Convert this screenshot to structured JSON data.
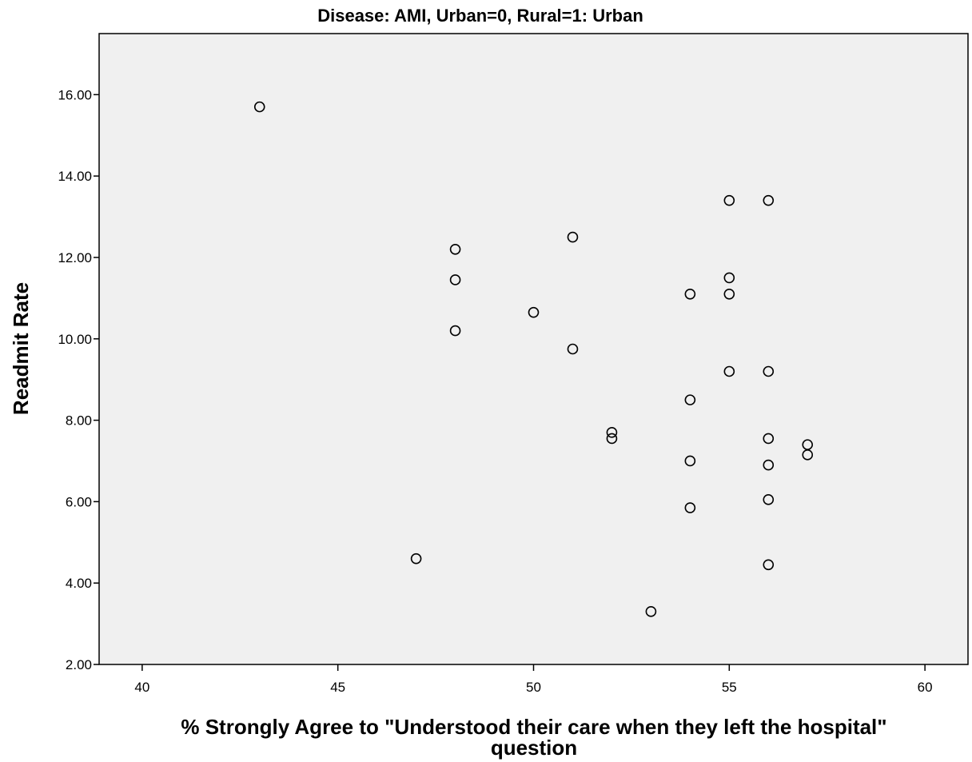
{
  "chart_data": {
    "type": "scatter",
    "title": "Disease: AMI, Urban=0, Rural=1: Urban",
    "xlabel_lines": [
      "% Strongly Agree to \"Understood their care when they left the hospital\"",
      "question"
    ],
    "ylabel": "Readmit Rate",
    "xlim": [
      38.9,
      61.1
    ],
    "ylim": [
      2.0,
      17.5
    ],
    "x_ticks": [
      40,
      45,
      50,
      55,
      60
    ],
    "x_tick_labels": [
      "40",
      "45",
      "50",
      "55",
      "60"
    ],
    "y_ticks": [
      2,
      4,
      6,
      8,
      10,
      12,
      14,
      16
    ],
    "y_tick_labels": [
      "2.00",
      "4.00",
      "6.00",
      "8.00",
      "10.00",
      "12.00",
      "14.00",
      "16.00"
    ],
    "grid": false,
    "plot_background": "#f0f0f0",
    "marker_color": "#000000",
    "points": [
      {
        "x": 43,
        "y": 15.7
      },
      {
        "x": 47,
        "y": 4.6
      },
      {
        "x": 48,
        "y": 12.2
      },
      {
        "x": 48,
        "y": 11.45
      },
      {
        "x": 48,
        "y": 10.2
      },
      {
        "x": 50,
        "y": 10.65
      },
      {
        "x": 51,
        "y": 12.5
      },
      {
        "x": 51,
        "y": 9.75
      },
      {
        "x": 52,
        "y": 7.7
      },
      {
        "x": 52,
        "y": 7.55
      },
      {
        "x": 53,
        "y": 3.3
      },
      {
        "x": 54,
        "y": 11.1
      },
      {
        "x": 54,
        "y": 8.5
      },
      {
        "x": 54,
        "y": 7.0
      },
      {
        "x": 54,
        "y": 5.85
      },
      {
        "x": 55,
        "y": 13.4
      },
      {
        "x": 55,
        "y": 11.5
      },
      {
        "x": 55,
        "y": 11.1
      },
      {
        "x": 55,
        "y": 9.2
      },
      {
        "x": 56,
        "y": 13.4
      },
      {
        "x": 56,
        "y": 9.2
      },
      {
        "x": 56,
        "y": 7.55
      },
      {
        "x": 56,
        "y": 6.9
      },
      {
        "x": 56,
        "y": 6.05
      },
      {
        "x": 56,
        "y": 4.45
      },
      {
        "x": 57,
        "y": 7.4
      },
      {
        "x": 57,
        "y": 7.15
      }
    ]
  }
}
